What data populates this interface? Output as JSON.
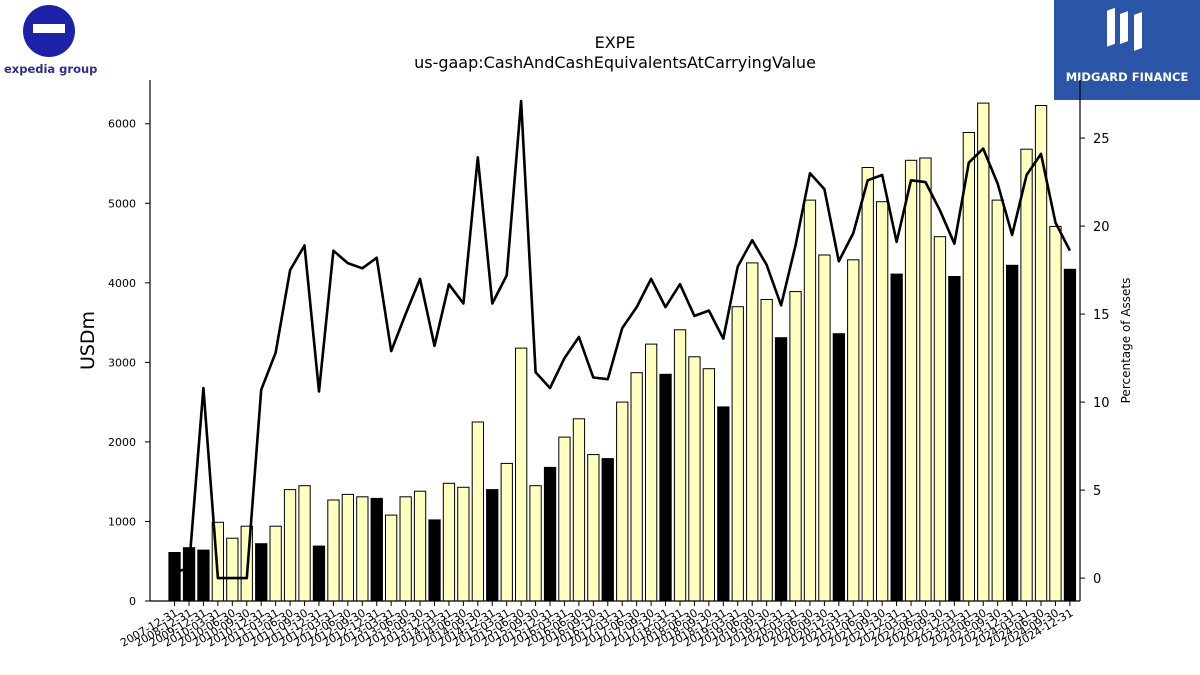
{
  "logos": {
    "left_text": "expedia group",
    "right_text": "MIDGARD FINANCE"
  },
  "colors": {
    "bar_q4": "#000000",
    "bar_other": "#ffffc0",
    "bar_stroke": "#000000",
    "line": "#000000",
    "logo_left": "#1e22a8",
    "logo_right_bg": "#2b55a6"
  },
  "chart_data": {
    "type": "bar",
    "title": "EXPE",
    "subtitle": "us-gaap:CashAndCashEquivalentsAtCarryingValue",
    "ylabel": "USDm",
    "y2label": "Percentage of Assets",
    "ylim": [
      0,
      6550
    ],
    "y2lim": [
      -1.3,
      28.3
    ],
    "yticks": [
      0,
      1000,
      2000,
      3000,
      4000,
      5000,
      6000
    ],
    "y2ticks": [
      0,
      5,
      10,
      15,
      20,
      25
    ],
    "grid": false,
    "categories": [
      "2007-12-31",
      "2008-12-31",
      "2009-12-31",
      "2010-03-31",
      "2010-06-30",
      "2010-09-30",
      "2010-12-31",
      "2011-03-31",
      "2011-06-30",
      "2011-09-30",
      "2011-12-31",
      "2012-03-31",
      "2012-06-30",
      "2012-09-30",
      "2012-12-31",
      "2013-03-31",
      "2013-06-30",
      "2013-09-30",
      "2013-12-31",
      "2014-03-31",
      "2014-06-30",
      "2014-09-30",
      "2014-12-31",
      "2015-03-31",
      "2015-06-30",
      "2015-09-30",
      "2015-12-31",
      "2016-03-31",
      "2016-06-30",
      "2016-09-30",
      "2016-12-31",
      "2017-03-31",
      "2017-06-30",
      "2017-09-30",
      "2017-12-31",
      "2018-03-31",
      "2018-06-30",
      "2018-09-30",
      "2018-12-31",
      "2019-03-31",
      "2019-06-30",
      "2019-09-30",
      "2019-12-31",
      "2020-03-31",
      "2020-06-30",
      "2020-09-30",
      "2020-12-31",
      "2021-03-31",
      "2021-06-30",
      "2021-09-30",
      "2021-12-31",
      "2022-03-31",
      "2022-06-30",
      "2022-09-30",
      "2022-12-31",
      "2023-03-31",
      "2023-06-30",
      "2023-09-30",
      "2023-12-31",
      "2024-03-31",
      "2024-06-30",
      "2024-09-30",
      "2024-12-31"
    ],
    "xticklabels": [
      "2007-12-31",
      "2008-12-31",
      "2009-12-31",
      "2010-03-31",
      "2010-06-30",
      "2010-09-30",
      "2010-12-31",
      "2011-03-31",
      "2011-06-30",
      "2011-09-30",
      "2011-12-31",
      "2012-03-31",
      "2012-06-30",
      "2012-09-30",
      "2012-12-31",
      "2013-03-31",
      "2013-06-30",
      "2013-09-30",
      "2013-12-31",
      "2014-03-31",
      "2014-06-30",
      "2014-09-30",
      "2014-12-31",
      "2015-03-31",
      "2015-06-30",
      "2015-09-30",
      "2015-12-31",
      "2016-03-31",
      "2016-06-30",
      "2016-09-30",
      "2016-12-31",
      "2017-03-31",
      "2017-06-30",
      "2017-09-30",
      "2017-12-31",
      "2018-03-31",
      "2018-06-30",
      "2018-09-30",
      "2018-12-31",
      "2019-03-31",
      "2019-06-30",
      "2019-09-30",
      "2019-12-31",
      "2020-03-31",
      "2020-06-30",
      "2020-09-30",
      "2020-12-31",
      "2021-03-31",
      "2021-06-30",
      "2021-09-30",
      "2021-12-31",
      "2022-03-31",
      "2022-06-30",
      "2022-09-30",
      "2022-12-31",
      "2023-03-31",
      "2023-06-30",
      "2023-09-30",
      "2023-12-31",
      "2024-03-31",
      "2024-06-30",
      "2024-09-30",
      "2024-12-31"
    ],
    "bar_values": [
      610,
      670,
      640,
      990,
      790,
      940,
      720,
      940,
      1400,
      1450,
      690,
      1270,
      1340,
      1310,
      1290,
      1080,
      1310,
      1380,
      1020,
      1480,
      1430,
      2250,
      1400,
      1730,
      3180,
      1450,
      1680,
      2060,
      2290,
      1840,
      1790,
      2500,
      2870,
      3230,
      2850,
      3410,
      3070,
      2920,
      2440,
      3700,
      4250,
      3790,
      3310,
      3890,
      5040,
      4350,
      3360,
      4290,
      5450,
      5020,
      4110,
      5540,
      5570,
      4580,
      4080,
      5890,
      6260,
      5040,
      4220,
      5680,
      6230,
      4710,
      4170
    ],
    "pct_values": [
      0.3,
      0.6,
      10.8,
      0.0,
      0.0,
      0.0,
      10.7,
      12.8,
      17.5,
      18.9,
      10.6,
      18.6,
      17.9,
      17.6,
      18.2,
      12.9,
      15.0,
      17.0,
      13.2,
      16.7,
      15.6,
      23.9,
      15.6,
      17.2,
      27.1,
      11.7,
      10.8,
      12.5,
      13.7,
      11.4,
      11.3,
      14.2,
      15.4,
      17.0,
      15.4,
      16.7,
      14.9,
      15.2,
      13.6,
      17.7,
      19.2,
      17.8,
      15.5,
      18.9,
      23.0,
      22.1,
      18.0,
      19.6,
      22.6,
      22.9,
      19.1,
      22.6,
      22.5,
      20.9,
      19.0,
      23.6,
      24.4,
      22.4,
      19.5,
      22.9,
      24.1,
      20.2,
      18.6
    ]
  }
}
